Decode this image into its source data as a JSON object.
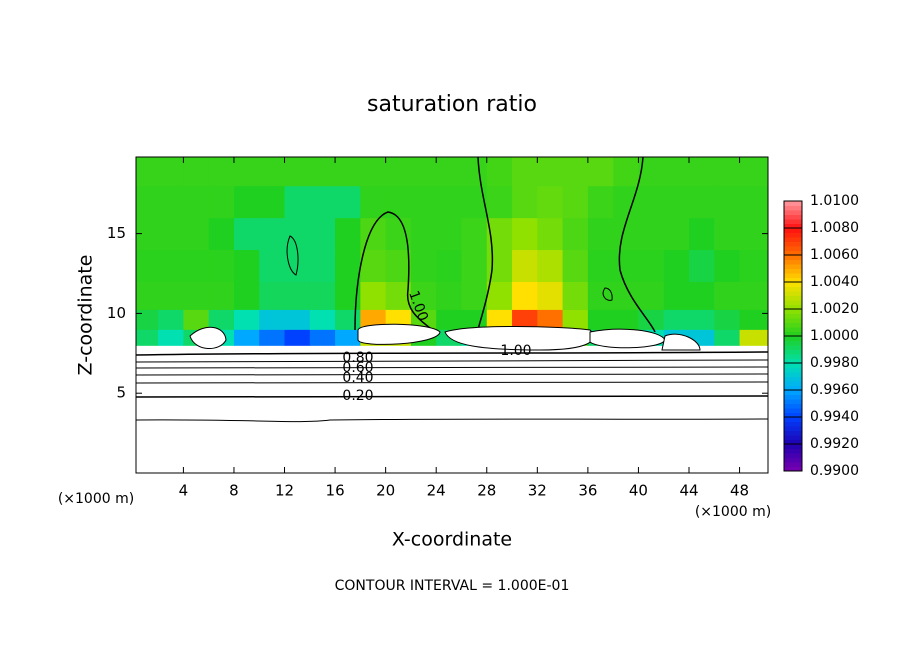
{
  "chart_data": {
    "type": "heatmap",
    "title": "saturation ratio",
    "xlabel": "X-coordinate",
    "ylabel": "Z-coordinate",
    "x_unit": "(×1000 m)",
    "footnote": "CONTOUR INTERVAL = 1.000E-01",
    "xlim": [
      0.25,
      50.25
    ],
    "ylim": [
      0,
      19.8
    ],
    "xticks": [
      4,
      8,
      12,
      16,
      20,
      24,
      28,
      32,
      36,
      40,
      44,
      48
    ],
    "yticks": [
      5,
      10,
      15
    ],
    "x": [
      1,
      3,
      5,
      7,
      9,
      11,
      13,
      15,
      17,
      19,
      21,
      23,
      25,
      27,
      29,
      31,
      33,
      35,
      37,
      39,
      41,
      43,
      45,
      47,
      49
    ],
    "z": [
      2,
      5,
      7.5,
      8.5,
      9.5,
      11,
      13,
      15,
      17,
      19
    ],
    "values": [
      [
        0.1,
        0.1,
        0.1,
        0.1,
        0.1,
        0.1,
        0.1,
        0.1,
        0.1,
        0.1,
        0.1,
        0.1,
        0.1,
        0.1,
        0.1,
        0.1,
        0.1,
        0.1,
        0.1,
        0.1,
        0.1,
        0.1,
        0.1,
        0.1,
        0.1
      ],
      [
        0.2,
        0.2,
        0.2,
        0.2,
        0.2,
        0.2,
        0.2,
        0.2,
        0.2,
        0.2,
        0.2,
        0.2,
        0.2,
        0.2,
        0.2,
        0.2,
        0.2,
        0.2,
        0.2,
        0.2,
        0.2,
        0.2,
        0.2,
        0.2,
        0.2
      ],
      [
        0.8,
        0.8,
        0.8,
        0.8,
        0.8,
        0.8,
        0.8,
        0.8,
        0.8,
        0.8,
        0.8,
        0.8,
        0.8,
        0.8,
        0.8,
        0.8,
        0.8,
        0.8,
        0.8,
        0.8,
        0.8,
        0.8,
        0.8,
        0.8,
        0.8
      ],
      [
        0.999,
        0.998,
        0.999,
        0.998,
        0.996,
        0.995,
        0.994,
        0.995,
        0.996,
        1.003,
        1.003,
        1.0,
        0.999,
        0.998,
        1.002,
        1.006,
        1.005,
        1.001,
        0.999,
        0.999,
        0.998,
        0.997,
        0.997,
        0.999,
        1.003
      ],
      [
        0.9995,
        0.999,
        1.001,
        0.999,
        0.998,
        0.997,
        0.997,
        0.998,
        0.999,
        1.005,
        1.004,
        1.001,
        1.0,
        1.0,
        1.004,
        1.007,
        1.006,
        1.002,
        1.0,
        1.0,
        0.9995,
        0.999,
        0.999,
        0.9995,
        1.0
      ],
      [
        1.0003,
        1.0003,
        1.0003,
        1.0003,
        1.0,
        0.9992,
        0.9992,
        0.9992,
        1.0,
        1.002,
        1.0015,
        1.0005,
        1.0003,
        1.0005,
        1.002,
        1.004,
        1.0035,
        1.0015,
        1.0003,
        1.0003,
        1.0003,
        1.0,
        1.0,
        1.0003,
        1.0003
      ],
      [
        1.0002,
        1.0002,
        1.0002,
        1.0002,
        1.0,
        0.999,
        0.999,
        0.999,
        1.0,
        1.001,
        1.0008,
        1.0003,
        1.0002,
        1.0005,
        1.0015,
        1.003,
        1.0025,
        1.001,
        1.0002,
        1.0002,
        1.0002,
        1.0,
        0.9995,
        1.0,
        1.0002
      ],
      [
        1.0003,
        1.0003,
        1.0003,
        1.0,
        0.999,
        0.999,
        0.999,
        0.999,
        1.0,
        1.0008,
        1.0005,
        1.0003,
        1.0003,
        1.0005,
        1.0015,
        1.002,
        1.0015,
        1.0008,
        1.0003,
        1.0003,
        1.0003,
        1.0003,
        1.0,
        1.0003,
        1.0003
      ],
      [
        1.0003,
        1.0003,
        1.0003,
        1.0003,
        1.0,
        1.0,
        0.999,
        0.999,
        0.999,
        1.0003,
        1.0003,
        1.0003,
        1.0003,
        1.0003,
        1.0005,
        1.001,
        1.0012,
        1.001,
        1.0005,
        1.0003,
        1.0003,
        1.0003,
        1.0003,
        1.0003,
        1.0003
      ],
      [
        1.0004,
        1.0004,
        1.0004,
        1.0004,
        1.0004,
        1.0004,
        1.0004,
        1.0004,
        1.0004,
        1.0004,
        1.0004,
        1.0004,
        1.0004,
        1.0004,
        1.0006,
        1.001,
        1.001,
        1.001,
        1.001,
        1.0006,
        1.0004,
        1.0004,
        1.0004,
        1.0004,
        1.0004
      ]
    ],
    "colorbar": {
      "ticks": [
        {
          "value": 0.99,
          "label": "0.9900"
        },
        {
          "value": 0.992,
          "label": "0.9920"
        },
        {
          "value": 0.994,
          "label": "0.9940"
        },
        {
          "value": 0.996,
          "label": "0.9960"
        },
        {
          "value": 0.998,
          "label": "0.9980"
        },
        {
          "value": 1.0,
          "label": "1.0000"
        },
        {
          "value": 1.002,
          "label": "1.0020"
        },
        {
          "value": 1.004,
          "label": "1.0040"
        },
        {
          "value": 1.006,
          "label": "1.0060"
        },
        {
          "value": 1.008,
          "label": "1.0080"
        },
        {
          "value": 1.01,
          "label": "1.0100"
        }
      ],
      "colors": [
        "#7a00b0",
        "#2000b0",
        "#0040ff",
        "#00a8ff",
        "#00e0b0",
        "#20d020",
        "#90e000",
        "#ffe000",
        "#ff7000",
        "#ff1010",
        "#ff9aa0"
      ]
    },
    "contour_labels": [
      "1.00",
      "0.80",
      "0.60",
      "0.40",
      "0.20",
      "1.00"
    ]
  }
}
